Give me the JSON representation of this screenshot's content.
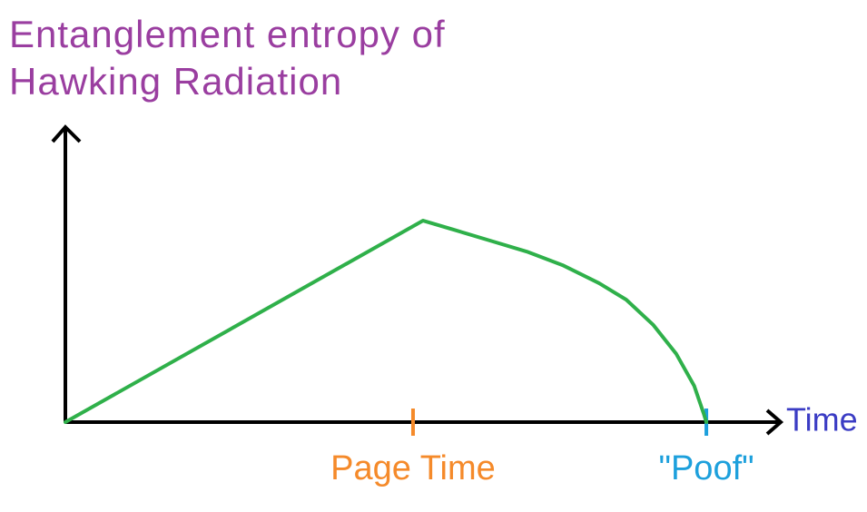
{
  "chart_data": {
    "type": "line",
    "y_label": "Entanglement entropy of Hawking Radiation",
    "x_label": "Time",
    "x": [
      0,
      50,
      54.3,
      59.4,
      64.5,
      69.5,
      74.6,
      78.4,
      82.2,
      85.4,
      87.9,
      89.2,
      89.6
    ],
    "series": [
      {
        "color": "#2fb04a",
        "values": [
          0,
          68.3,
          65.2,
          61.5,
          57.8,
          53.2,
          47.1,
          41.5,
          32.9,
          23.1,
          12.3,
          3.1,
          0
        ]
      }
    ],
    "xlim": [
      0,
      100
    ],
    "ylim": [
      0,
      100
    ],
    "annotations": [
      {
        "text": "Page Time",
        "x": 48.6,
        "color": "#f58a2a"
      },
      {
        "text": "\"Poof\"",
        "x": 89.6,
        "color": "#1da0dc"
      }
    ],
    "y_label_color": "#9a3ea0",
    "x_label_color": "#3b3cc4"
  }
}
